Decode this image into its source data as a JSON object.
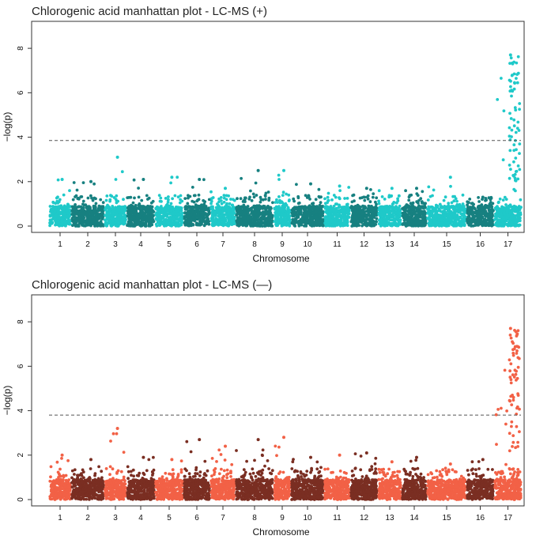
{
  "chart_data": [
    {
      "type": "scatter",
      "title": "Chlorogenic acid manhattan plot - LC-MS (+)",
      "xlabel": "Chromosome",
      "ylabel": "−log(p)",
      "ylim": [
        0,
        9
      ],
      "yticks": [
        0,
        2,
        4,
        6,
        8
      ],
      "threshold": 3.85,
      "colors": {
        "odd": "#1fc9c9",
        "even": "#178080",
        "threshold": "#555555"
      },
      "chromosomes": [
        {
          "label": "1",
          "max": 2.1
        },
        {
          "label": "2",
          "max": 2.0
        },
        {
          "label": "3",
          "max": 3.1
        },
        {
          "label": "4",
          "max": 2.1
        },
        {
          "label": "5",
          "max": 2.2
        },
        {
          "label": "6",
          "max": 2.1
        },
        {
          "label": "7",
          "max": 1.7
        },
        {
          "label": "8",
          "max": 2.5
        },
        {
          "label": "9",
          "max": 2.5
        },
        {
          "label": "10",
          "max": 1.9
        },
        {
          "label": "11",
          "max": 1.8
        },
        {
          "label": "12",
          "max": 1.7
        },
        {
          "label": "13",
          "max": 1.7
        },
        {
          "label": "14",
          "max": 1.7
        },
        {
          "label": "15",
          "max": 2.2
        },
        {
          "label": "16",
          "max": 1.3
        },
        {
          "label": "17",
          "max": 7.7
        }
      ]
    },
    {
      "type": "scatter",
      "title": "Chlorogenic acid manhattan plot - LC-MS (—)",
      "xlabel": "Chromosome",
      "ylabel": "−log(p)",
      "ylim": [
        0,
        9
      ],
      "yticks": [
        0,
        2,
        4,
        6,
        8
      ],
      "threshold": 3.8,
      "colors": {
        "odd": "#f26146",
        "even": "#7a2e22",
        "threshold": "#555555"
      },
      "chromosomes": [
        {
          "label": "1",
          "max": 2.0
        },
        {
          "label": "2",
          "max": 1.8
        },
        {
          "label": "3",
          "max": 3.2
        },
        {
          "label": "4",
          "max": 1.9
        },
        {
          "label": "5",
          "max": 1.8
        },
        {
          "label": "6",
          "max": 2.7
        },
        {
          "label": "7",
          "max": 2.4
        },
        {
          "label": "8",
          "max": 2.7
        },
        {
          "label": "9",
          "max": 2.8
        },
        {
          "label": "10",
          "max": 1.9
        },
        {
          "label": "11",
          "max": 2.0
        },
        {
          "label": "12",
          "max": 2.1
        },
        {
          "label": "13",
          "max": 1.7
        },
        {
          "label": "14",
          "max": 1.9
        },
        {
          "label": "15",
          "max": 1.6
        },
        {
          "label": "16",
          "max": 1.8
        },
        {
          "label": "17",
          "max": 7.7
        }
      ]
    }
  ]
}
